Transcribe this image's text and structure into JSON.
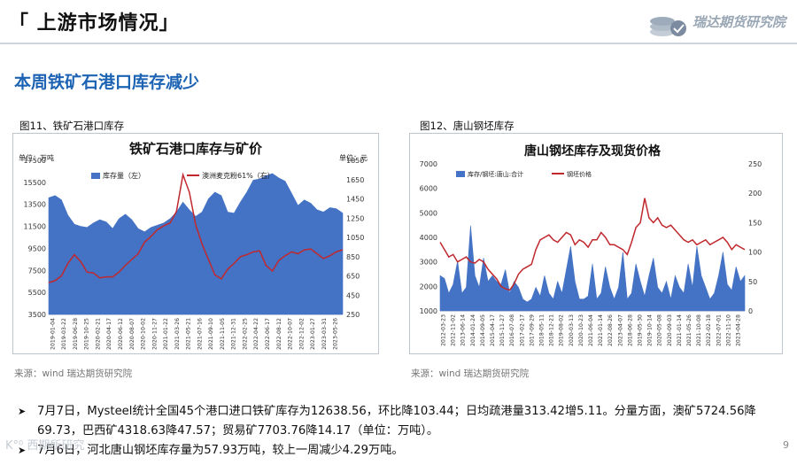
{
  "header": {
    "title": "「 上游市场情况」",
    "logo_text": "瑞达期货研究院"
  },
  "subtitle": "本周铁矿石港口库存减少",
  "figures": [
    {
      "caption": "图11、铁矿石港口库存",
      "source": "来源：wind    瑞达期货研究院"
    },
    {
      "caption": "图12、唐山钢坯库存",
      "source": "来源：wind    瑞达期货研究院"
    }
  ],
  "bullets": [
    "7月7日，Mysteel统计全国45个港口进口铁矿库存为12638.56，环比降103.44；日均疏港量313.42增5.11。分量方面，澳矿5724.56降69.73，巴西矿4318.63降47.57；贸易矿7703.76降14.17（单位：万吨）。",
    "7月6日，河北唐山钢坯库存量为57.93万吨，较上一周减少4.29万吨。"
  ],
  "page_number": "9",
  "watermark": "K°⁰ 西期所研究",
  "chart_data": [
    {
      "type": "area+line",
      "title": "铁矿石港口库存与矿价",
      "left_unit": "单位：万吨",
      "right_unit": "单位：元",
      "y_left": {
        "min": 3500,
        "max": 17500,
        "ticks": [
          "17500",
          "15500",
          "13500",
          "11500",
          "9500",
          "7500",
          "5500",
          "3500"
        ]
      },
      "y_right": {
        "min": 250,
        "max": 1850,
        "ticks": [
          "1850",
          "1650",
          "1450",
          "1250",
          "1050",
          "850",
          "650",
          "450",
          "250"
        ]
      },
      "x_labels": [
        "2019-01-04",
        "2019-03-08",
        "2019-05-10",
        "2019-07-12",
        "2019-09-13",
        "2019-11-15",
        "2020-01-17",
        "2020-03-20",
        "2020-05-22",
        "2020-07-24",
        "2020-09-25",
        "2020-11-27",
        "2021-01-29",
        "2021-04-02",
        "2021-06-04",
        "2021-08-06",
        "2021-10-08",
        "2021-12-10",
        "2022-02-11",
        "2022-04-15",
        "2022-06-17",
        "2022-08-19",
        "2022-10-21",
        "2022-12-23",
        "2023-02-24",
        "2023-04-28",
        "2023-06-30"
      ],
      "x_labels_shown": [
        "2019-01-04",
        "2019-03-22",
        "2019-06-28",
        "2019-10-25",
        "2020-02-21",
        "2020-04-17",
        "2020-06-12",
        "2020-08-07",
        "2020-10-02",
        "2020-11-27",
        "2021-01-22",
        "2021-03-26",
        "2021-05-21",
        "2021-07-16",
        "2021-09-10",
        "2021-11-05",
        "2021-12-31",
        "2022-02-25",
        "2022-04-22",
        "2022-06-17",
        "2022-08-12",
        "2022-10-07",
        "2022-12-02",
        "2023-01-27",
        "2023-03-31",
        "2023-05-26"
      ],
      "series": [
        {
          "name": "库存量（左）",
          "color": "#4472c4",
          "axis": "left",
          "values": [
            14100,
            14300,
            13900,
            12500,
            11700,
            11500,
            11400,
            11800,
            12100,
            11900,
            11300,
            12200,
            12600,
            12100,
            11300,
            11000,
            11400,
            11600,
            11800,
            12200,
            12800,
            13700,
            13000,
            12400,
            12800,
            14000,
            14600,
            14300,
            12800,
            12700,
            13700,
            14600,
            15700,
            15800,
            16100,
            16300,
            15900,
            15600,
            14500,
            13400,
            13900,
            13600,
            13000,
            12800,
            13200,
            13100,
            12700
          ]
        },
        {
          "name": "澳洲麦克粉61%（右）",
          "color": "#c0282d",
          "axis": "right",
          "values": [
            580,
            600,
            650,
            780,
            870,
            800,
            690,
            680,
            630,
            640,
            640,
            690,
            760,
            820,
            880,
            1000,
            1060,
            1130,
            1170,
            1200,
            1320,
            1700,
            1520,
            1180,
            980,
            820,
            660,
            620,
            720,
            780,
            850,
            870,
            900,
            910,
            760,
            700,
            810,
            860,
            900,
            880,
            920,
            930,
            880,
            830,
            860,
            900,
            920
          ]
        }
      ]
    },
    {
      "type": "area+line",
      "title": "唐山钢坯库存及现货价格",
      "y_left": {
        "min": 1000,
        "max": 7000,
        "ticks": [
          "7000",
          "6000",
          "5000",
          "4000",
          "3000",
          "2000",
          "1000"
        ]
      },
      "y_right": {
        "min": 0,
        "max": 250,
        "ticks": [
          "250",
          "200",
          "150",
          "100",
          "50",
          "0"
        ]
      },
      "x_labels_shown": [
        "2012-03-23",
        "2012-11-02",
        "2013-06-14",
        "2014-01-24",
        "2014-09-05",
        "2015-04-17",
        "2015-11-27",
        "2016-07-08",
        "2017-02-17",
        "2017-09-29",
        "2018-05-11",
        "2018-12-21",
        "2019-08-02",
        "2020-03-13",
        "2020-10-23",
        "2021-06-04",
        "2021-01-14",
        "2022-08-26",
        "2023-04-07",
        "2018-06-28",
        "2019-05-30",
        "2019-10-14",
        "2020-05-08",
        "2020-09-03",
        "2021-01-14",
        "2021-05-26",
        "2021-10-08",
        "2022-02-18",
        "2022-07-01",
        "2022-11-10",
        "2023-04-28"
      ],
      "series": [
        {
          "name": "库存/钢坯:唐山:合计",
          "color": "#4472c4",
          "axis": "right",
          "values": [
            60,
            55,
            30,
            45,
            85,
            30,
            40,
            145,
            60,
            40,
            90,
            50,
            60,
            50,
            45,
            70,
            30,
            50,
            40,
            20,
            15,
            20,
            40,
            25,
            60,
            30,
            20,
            50,
            30,
            70,
            110,
            50,
            20,
            20,
            25,
            80,
            20,
            30,
            75,
            40,
            20,
            40,
            100,
            20,
            30,
            80,
            50,
            25,
            60,
            90,
            40,
            30,
            50,
            20,
            60,
            40,
            30,
            80,
            40,
            110,
            60,
            40,
            20,
            30,
            60,
            100,
            45,
            35,
            75,
            50,
            60
          ]
        },
        {
          "name": "钢坯价格",
          "color": "#c0282d",
          "axis": "left",
          "values": [
            3800,
            3500,
            3200,
            3300,
            3000,
            3100,
            3200,
            3000,
            2950,
            3100,
            3000,
            2700,
            2500,
            2300,
            2000,
            1900,
            1850,
            2100,
            2500,
            2700,
            2800,
            2900,
            3500,
            3900,
            4000,
            4100,
            3900,
            3800,
            4000,
            4200,
            4100,
            3700,
            3900,
            3800,
            3600,
            3900,
            3900,
            4200,
            4000,
            3700,
            3700,
            3600,
            3500,
            3300,
            3800,
            4400,
            4600,
            5600,
            4800,
            4600,
            4800,
            4500,
            4400,
            4500,
            4300,
            4100,
            3900,
            3800,
            3900,
            3700,
            3800,
            3900,
            3700,
            3800,
            3900,
            4000,
            3800,
            3500,
            3700,
            3600,
            3500
          ]
        }
      ]
    }
  ]
}
